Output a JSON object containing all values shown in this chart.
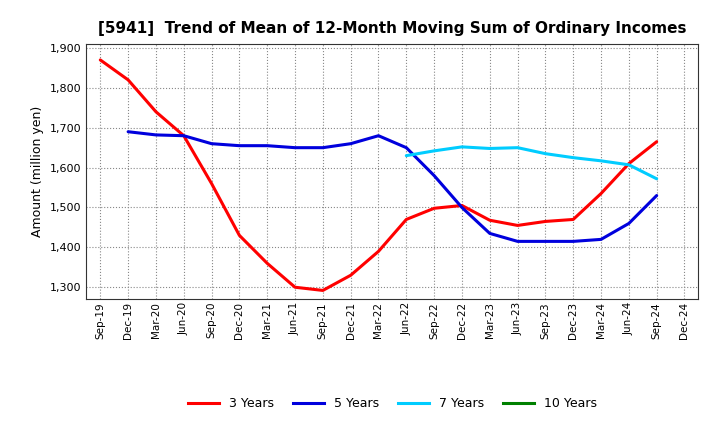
{
  "title": "[5941]  Trend of Mean of 12-Month Moving Sum of Ordinary Incomes",
  "ylabel": "Amount (million yen)",
  "ylim": [
    1270,
    1910
  ],
  "yticks": [
    1300,
    1400,
    1500,
    1600,
    1700,
    1800,
    1900
  ],
  "x_labels": [
    "Sep-19",
    "Dec-19",
    "Mar-20",
    "Jun-20",
    "Sep-20",
    "Dec-20",
    "Mar-21",
    "Jun-21",
    "Sep-21",
    "Dec-21",
    "Mar-22",
    "Jun-22",
    "Sep-22",
    "Dec-22",
    "Mar-23",
    "Jun-23",
    "Sep-23",
    "Dec-23",
    "Mar-24",
    "Jun-24",
    "Sep-24",
    "Dec-24"
  ],
  "series": {
    "3 Years": {
      "color": "#FF0000",
      "data": [
        1870,
        1820,
        1740,
        1680,
        1560,
        1430,
        1360,
        1300,
        1292,
        1330,
        1390,
        1470,
        1498,
        1505,
        1468,
        1455,
        1465,
        1470,
        1535,
        1610,
        1665,
        null
      ]
    },
    "5 Years": {
      "color": "#0000DD",
      "data": [
        null,
        1690,
        1682,
        1680,
        1660,
        1655,
        1655,
        1650,
        1650,
        1660,
        1680,
        1650,
        1580,
        1500,
        1435,
        1415,
        1415,
        1415,
        1420,
        1460,
        1530,
        null
      ]
    },
    "7 Years": {
      "color": "#00CCFF",
      "data": [
        null,
        null,
        null,
        null,
        null,
        null,
        null,
        null,
        null,
        null,
        null,
        1630,
        1642,
        1652,
        1648,
        1650,
        1635,
        1625,
        1617,
        1607,
        1572,
        null
      ]
    },
    "10 Years": {
      "color": "#008000",
      "data": [
        null,
        null,
        null,
        null,
        null,
        null,
        null,
        null,
        null,
        null,
        null,
        null,
        null,
        null,
        null,
        null,
        null,
        null,
        null,
        null,
        null,
        null
      ]
    }
  },
  "legend_labels": [
    "3 Years",
    "5 Years",
    "7 Years",
    "10 Years"
  ],
  "legend_colors": [
    "#FF0000",
    "#0000DD",
    "#00CCFF",
    "#008000"
  ],
  "background_color": "#FFFFFF",
  "plot_bg_color": "#FFFFFF",
  "grid_color": "#AAAAAA"
}
